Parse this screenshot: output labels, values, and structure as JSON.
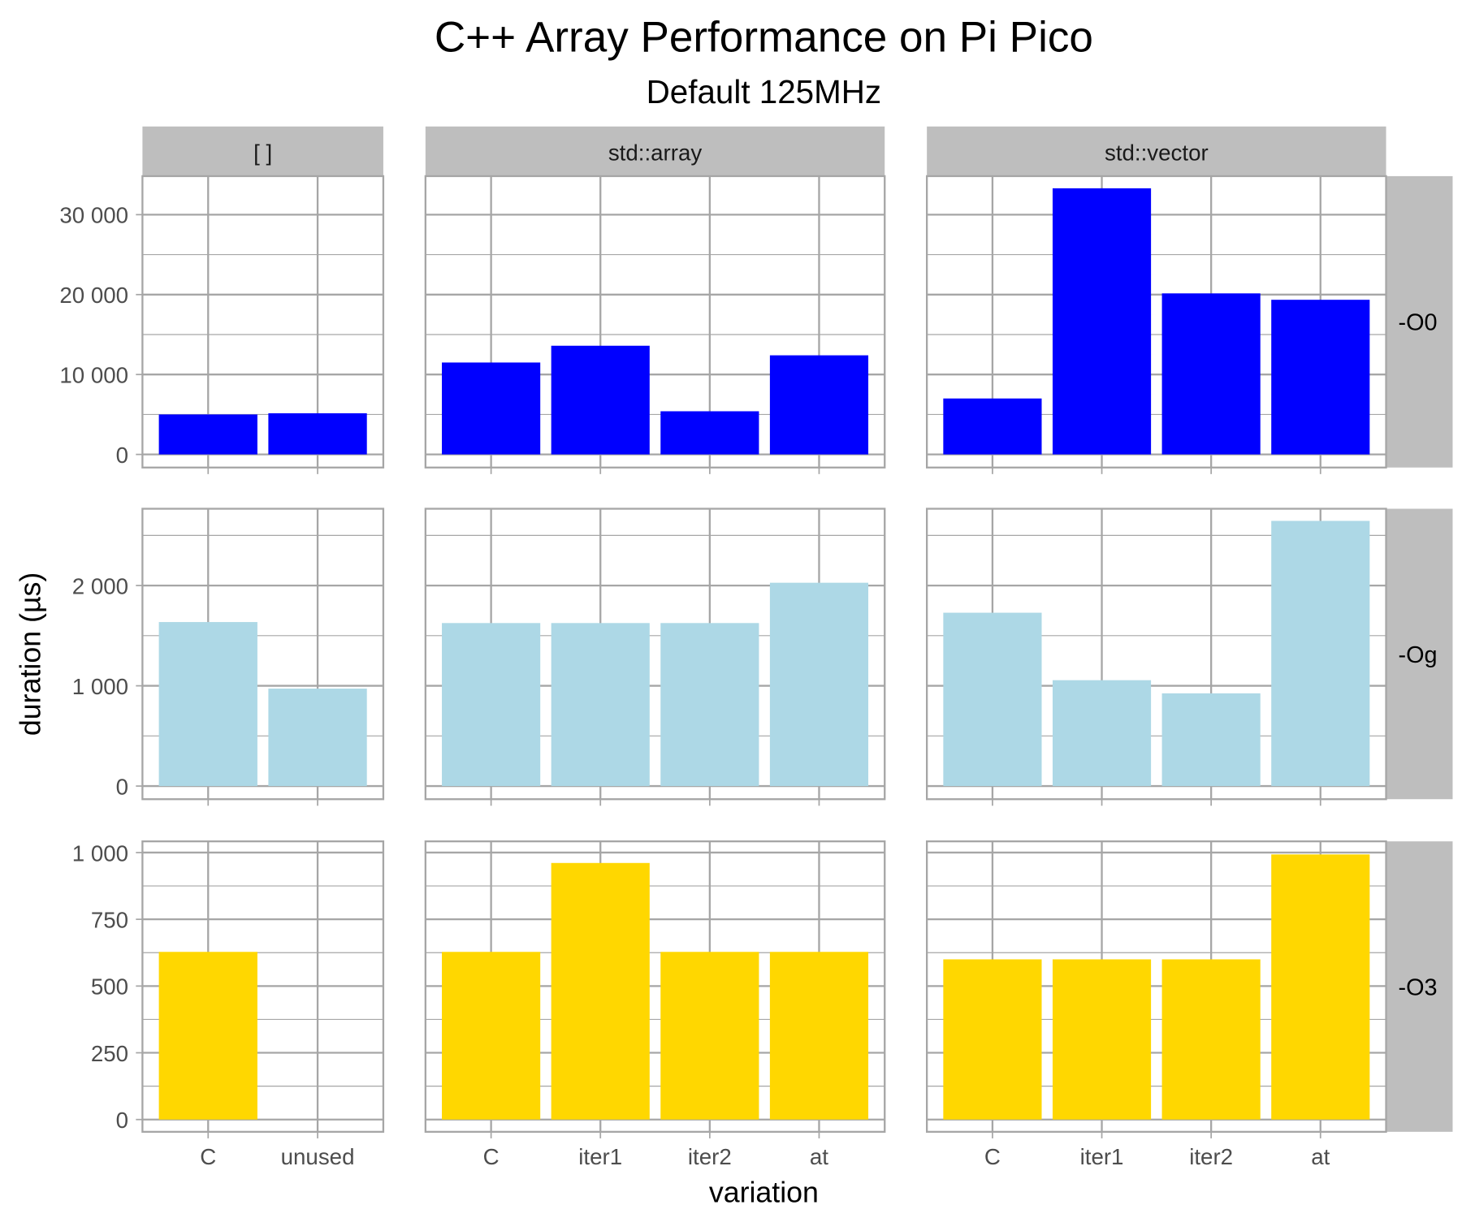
{
  "chart_data": {
    "type": "bar",
    "title": "C++ Array Performance on Pi Pico",
    "subtitle": "Default 125MHz",
    "xlabel": "variation",
    "ylabel": "duration (µs)",
    "grid": true,
    "legend": "none",
    "facet_columns": [
      "[ ]",
      "std::array",
      "std::vector"
    ],
    "facet_rows": [
      "-O0",
      "-Og",
      "-O3"
    ],
    "categories": {
      "[ ]": [
        "C",
        "unused"
      ],
      "std::array": [
        "C",
        "iter1",
        "iter2",
        "at"
      ],
      "std::vector": [
        "C",
        "iter1",
        "iter2",
        "at"
      ]
    },
    "rows": [
      {
        "name": "-O0",
        "color": "#0000FF",
        "ylim": [
          -1640,
          34820
        ],
        "yticks": [
          0,
          10000,
          20000,
          30000
        ],
        "ytick_labels": [
          "0",
          "10 000",
          "20 000",
          "30 000"
        ],
        "values": {
          "[ ]": [
            5000,
            5150
          ],
          "std::array": [
            11500,
            13600,
            5400,
            12400
          ],
          "std::vector": [
            7000,
            33300,
            20150,
            19350
          ]
        }
      },
      {
        "name": "-Og",
        "color": "#ADD8E6",
        "ylim": [
          -131,
          2766
        ],
        "yticks": [
          0,
          1000,
          2000
        ],
        "ytick_labels": [
          "0",
          "1 000",
          "2 000"
        ],
        "values": {
          "[ ]": [
            1636,
            972
          ],
          "std::array": [
            1626,
            1626,
            1626,
            2028
          ],
          "std::vector": [
            1729,
            1056,
            925,
            2645
          ]
        }
      },
      {
        "name": "-O3",
        "color": "#FFD700",
        "ylim": [
          -46,
          1042
        ],
        "yticks": [
          0,
          250,
          500,
          750,
          1000
        ],
        "ytick_labels": [
          "0",
          "250",
          "500",
          "750",
          "1 000"
        ],
        "values": {
          "[ ]": [
            628,
            null
          ],
          "std::array": [
            628,
            961,
            628,
            628
          ],
          "std::vector": [
            600,
            600,
            600,
            993
          ]
        }
      }
    ]
  }
}
